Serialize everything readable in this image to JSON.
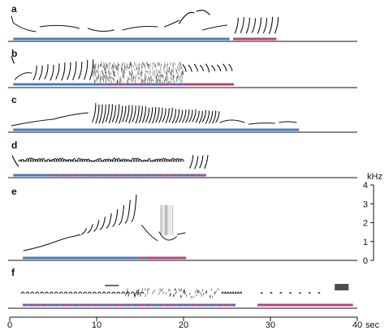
{
  "chart_data": {
    "type": "spectrogram",
    "x_axis": {
      "min": 0,
      "max": 40,
      "ticks": [
        0,
        10,
        20,
        30,
        40
      ],
      "tick_labels": [
        "0",
        "10",
        "20",
        "30",
        "40"
      ],
      "unit": "sec"
    },
    "y_axis": {
      "panel": "e",
      "min": 0,
      "max": 4,
      "ticks": [
        0,
        1,
        2,
        3,
        4
      ],
      "tick_labels": [
        "0",
        "1",
        "2",
        "3",
        "4"
      ],
      "unit": "kHz"
    },
    "colors": {
      "blue": "#4a7bc0",
      "magenta": "#b4457a",
      "ink": "#111111"
    },
    "panels": [
      {
        "label": "a",
        "segments": [
          {
            "start": 0.4,
            "end": 25.3,
            "color": "blue",
            "style": "solid"
          },
          {
            "start": 25.7,
            "end": 30.7,
            "color": "magenta",
            "style": "solid"
          }
        ]
      },
      {
        "label": "b",
        "segments": [
          {
            "start": 0.4,
            "end": 10.7,
            "color": "blue",
            "style": "solid"
          },
          {
            "start": 10.7,
            "end": 20.0,
            "color": "blue-magenta",
            "style": "dashed"
          },
          {
            "start": 20.0,
            "end": 25.8,
            "color": "magenta",
            "style": "solid"
          }
        ]
      },
      {
        "label": "c",
        "segments": [
          {
            "start": 0.4,
            "end": 33.3,
            "color": "blue",
            "style": "solid"
          }
        ]
      },
      {
        "label": "d",
        "segments": [
          {
            "start": 0.4,
            "end": 4.5,
            "color": "blue",
            "style": "solid"
          },
          {
            "start": 4.5,
            "end": 22.6,
            "color": "blue-magenta",
            "style": "dashed"
          }
        ]
      },
      {
        "label": "e",
        "segments": [
          {
            "start": 1.5,
            "end": 14.5,
            "color": "blue",
            "style": "solid"
          },
          {
            "start": 14.5,
            "end": 15.7,
            "color": "blue-magenta",
            "style": "dashed"
          },
          {
            "start": 15.7,
            "end": 20.3,
            "color": "magenta",
            "style": "solid"
          }
        ]
      },
      {
        "label": "f",
        "segments": [
          {
            "start": 1.5,
            "end": 26.0,
            "color": "blue-magenta",
            "style": "dashed"
          },
          {
            "start": 28.5,
            "end": 39.5,
            "color": "magenta",
            "style": "solid"
          }
        ]
      }
    ]
  }
}
